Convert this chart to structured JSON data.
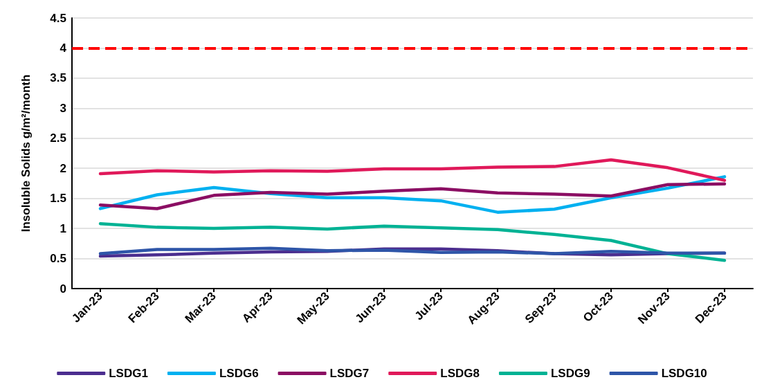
{
  "chart_data": {
    "type": "line",
    "ylabel": "Insoluble Solids g/m²/month",
    "categories": [
      "Jan-23",
      "Feb-23",
      "Mar-23",
      "Apr-23",
      "May-23",
      "Jun-23",
      "Jul-23",
      "Aug-23",
      "Sep-23",
      "Oct-23",
      "Nov-23",
      "Dec-23"
    ],
    "series": [
      {
        "name": "LSDG1",
        "color": "#4b2e8f",
        "values": [
          0.54,
          0.56,
          0.59,
          0.61,
          0.62,
          0.66,
          0.66,
          0.63,
          0.58,
          0.56,
          0.58,
          0.59
        ]
      },
      {
        "name": "LSDG6",
        "color": "#00b0f0",
        "values": [
          1.33,
          1.56,
          1.68,
          1.58,
          1.51,
          1.51,
          1.46,
          1.27,
          1.32,
          1.51,
          1.67,
          1.86
        ]
      },
      {
        "name": "LSDG7",
        "color": "#8b0e63",
        "values": [
          1.39,
          1.33,
          1.55,
          1.6,
          1.57,
          1.62,
          1.66,
          1.59,
          1.57,
          1.54,
          1.73,
          1.74
        ]
      },
      {
        "name": "LSDG8",
        "color": "#e0195a",
        "values": [
          1.91,
          1.96,
          1.94,
          1.96,
          1.95,
          1.99,
          1.99,
          2.02,
          2.03,
          2.14,
          2.01,
          1.8
        ]
      },
      {
        "name": "LSDG9",
        "color": "#00b294",
        "values": [
          1.08,
          1.02,
          1.0,
          1.02,
          0.99,
          1.04,
          1.01,
          0.98,
          0.9,
          0.8,
          0.58,
          0.47
        ]
      },
      {
        "name": "LSDG10",
        "color": "#2e55a8",
        "values": [
          0.58,
          0.65,
          0.65,
          0.67,
          0.63,
          0.64,
          0.6,
          0.61,
          0.58,
          0.62,
          0.59,
          0.59
        ]
      }
    ],
    "ylim": [
      0,
      4.5
    ],
    "yticks": [
      0,
      0.5,
      1,
      1.5,
      2,
      2.5,
      3,
      3.5,
      4,
      4.5
    ],
    "grid": "y",
    "legend": "bottom",
    "marker": "none",
    "line_style": "solid",
    "ref_lines": [
      {
        "axis": "y",
        "value": 4,
        "color": "#ff0000",
        "line_style": "dashed"
      }
    ]
  }
}
